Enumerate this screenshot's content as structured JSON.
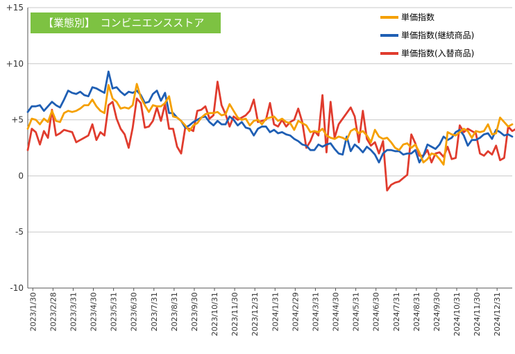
{
  "title": "【業態別】　コンビニエンスストア",
  "colors": {
    "title_bg": "#7dc242",
    "grid": "#c8c8c8",
    "axis": "#555555"
  },
  "chart_data": {
    "type": "line",
    "ylim": [
      -10,
      15
    ],
    "yticks": [
      -10,
      -5,
      0,
      5,
      10,
      15
    ],
    "ytick_labels": [
      "-10",
      "-5",
      "0",
      "+5",
      "+10",
      "+15"
    ],
    "legend_position": "top-right",
    "grid": true,
    "x_labels": [
      "2023/1/30",
      "2023/2/28",
      "2023/3/31",
      "2023/4/30",
      "2023/5/31",
      "2023/6/30",
      "2023/7/31",
      "2023/8/31",
      "2023/9/30",
      "2023/10/31",
      "2023/11/30",
      "2023/12/31",
      "2024/1/31",
      "2024/2/29",
      "2024/3/31",
      "2024/4/30",
      "2024/5/31",
      "2024/6/30",
      "2024/7/31",
      "2024/8/31",
      "2024/9/30",
      "2024/10/31",
      "2024/11/30",
      "2024/12/31"
    ],
    "series": [
      {
        "name": "単価指数",
        "color": "#f5a000",
        "values": [
          4.2,
          5.1,
          5.0,
          4.6,
          5.1,
          4.8,
          5.8,
          4.9,
          4.8,
          5.6,
          5.8,
          5.7,
          5.8,
          6.0,
          6.3,
          6.3,
          6.8,
          6.2,
          5.8,
          5.6,
          8.1,
          6.9,
          6.6,
          6.0,
          6.1,
          6.0,
          6.3,
          8.2,
          7.0,
          6.3,
          5.7,
          6.3,
          6.2,
          6.2,
          6.5,
          7.1,
          5.3,
          5.2,
          4.9,
          4.5,
          4.0,
          4.5,
          4.7,
          5.2,
          5.5,
          5.6,
          5.6,
          5.7,
          5.4,
          5.5,
          6.4,
          5.8,
          5.2,
          5.0,
          5.1,
          4.5,
          4.9,
          5.0,
          4.6,
          5.1,
          5.2,
          5.3,
          4.9,
          5.1,
          4.8,
          4.7,
          4.1,
          4.9,
          4.7,
          4.5,
          3.9,
          4.0,
          3.9,
          4.2,
          3.6,
          3.4,
          3.3,
          3.5,
          3.4,
          3.2,
          4.0,
          4.2,
          3.8,
          4.0,
          3.6,
          3.0,
          4.1,
          3.5,
          3.3,
          3.4,
          3.0,
          2.5,
          2.3,
          2.8,
          2.9,
          2.5,
          2.8,
          2.1,
          1.2,
          1.5,
          2.0,
          1.9,
          1.5,
          1.0,
          3.9,
          3.7,
          3.6,
          3.9,
          4.2,
          4.0,
          3.4,
          4.0,
          3.9,
          4.0,
          4.6,
          3.7,
          3.8,
          5.2,
          4.8,
          4.4,
          4.6
        ]
      },
      {
        "name": "単価指数(継続商品)",
        "color": "#1f5fb4",
        "values": [
          5.7,
          6.2,
          6.2,
          6.3,
          5.8,
          6.2,
          6.6,
          6.3,
          6.1,
          6.8,
          7.6,
          7.4,
          7.3,
          7.5,
          7.2,
          7.1,
          7.9,
          7.8,
          7.6,
          7.4,
          9.3,
          7.8,
          7.9,
          7.5,
          7.2,
          7.5,
          7.4,
          7.6,
          7.2,
          6.5,
          6.6,
          7.3,
          7.6,
          6.7,
          7.4,
          5.6,
          5.6,
          5.2,
          4.9,
          4.3,
          4.5,
          4.8,
          5.0,
          5.2,
          5.3,
          4.8,
          4.5,
          4.9,
          4.6,
          4.6,
          5.3,
          5.0,
          4.5,
          4.8,
          4.3,
          4.2,
          3.6,
          4.2,
          4.4,
          4.4,
          3.9,
          4.1,
          3.8,
          3.9,
          3.7,
          3.6,
          3.3,
          3.1,
          2.8,
          2.7,
          2.3,
          2.3,
          2.8,
          2.6,
          2.8,
          2.9,
          2.4,
          2.0,
          1.9,
          3.5,
          2.2,
          2.8,
          2.5,
          2.1,
          2.6,
          2.3,
          1.9,
          1.2,
          2.0,
          2.3,
          2.3,
          2.2,
          2.2,
          1.9,
          2.0,
          2.0,
          2.3,
          1.2,
          1.8,
          2.8,
          2.6,
          2.4,
          2.8,
          3.5,
          3.2,
          3.4,
          3.9,
          4.1,
          3.6,
          2.7,
          3.2,
          3.2,
          3.4,
          3.7,
          3.8,
          3.3,
          4.1,
          3.9,
          3.6,
          3.7,
          3.5
        ]
      },
      {
        "name": "単価指数(入替商品)",
        "color": "#e03c2e",
        "values": [
          2.3,
          4.2,
          3.9,
          2.8,
          4.0,
          3.4,
          5.9,
          3.6,
          3.8,
          4.1,
          4.0,
          3.9,
          3.0,
          3.2,
          3.4,
          3.6,
          4.6,
          3.2,
          3.9,
          3.6,
          6.3,
          6.6,
          5.1,
          4.2,
          3.7,
          2.5,
          4.3,
          6.9,
          6.5,
          4.3,
          4.4,
          4.9,
          6.1,
          4.9,
          6.4,
          4.2,
          4.2,
          2.6,
          2.0,
          4.3,
          4.2,
          4.0,
          5.8,
          5.9,
          6.2,
          5.1,
          5.4,
          8.4,
          6.3,
          5.5,
          4.4,
          5.3,
          5.0,
          5.2,
          5.4,
          5.8,
          6.8,
          4.8,
          4.9,
          5.0,
          6.5,
          4.6,
          4.4,
          5.0,
          4.4,
          4.8,
          5.0,
          6.0,
          4.8,
          2.5,
          3.1,
          4.0,
          3.6,
          7.2,
          2.1,
          6.6,
          3.4,
          4.6,
          5.1,
          5.6,
          6.1,
          5.3,
          3.0,
          5.8,
          3.3,
          2.7,
          3.0,
          2.0,
          3.1,
          -1.3,
          -0.8,
          -0.6,
          -0.5,
          -0.2,
          0.1,
          3.7,
          2.9,
          1.8,
          1.8,
          2.3,
          1.2,
          2.0,
          2.1,
          1.7,
          2.6,
          1.5,
          1.6,
          4.5,
          3.9,
          4.2,
          4.0,
          3.8,
          2.0,
          1.8,
          2.2,
          1.9,
          2.7,
          1.4,
          1.6,
          4.4,
          4.0,
          4.2,
          3.9
        ]
      }
    ]
  }
}
